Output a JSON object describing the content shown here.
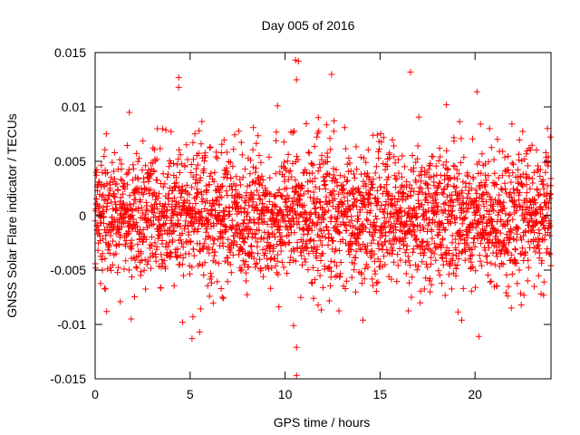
{
  "chart_data": {
    "type": "scatter",
    "title": "Day 005 of 2016",
    "xlabel": "GPS time / hours",
    "ylabel": "GNSS Solar Flare indicator / TECUs",
    "xlim": [
      0,
      24
    ],
    "ylim": [
      -0.015,
      0.015
    ],
    "x_ticks": [
      0,
      5,
      10,
      15,
      20
    ],
    "x_tick_labels": [
      "0",
      "5",
      "10",
      "15",
      "20"
    ],
    "y_ticks": [
      -0.015,
      -0.01,
      -0.005,
      0,
      0.005,
      0.01,
      0.015
    ],
    "y_tick_labels": [
      "-0.015",
      "-0.01",
      "-0.005",
      "0",
      "0.005",
      "0.01",
      "0.015"
    ],
    "marker": "+",
    "grid": false,
    "legend": "none",
    "colors": {
      "marker": "#ff0000",
      "frame": "#000000",
      "background": "#ffffff"
    },
    "series": [
      {
        "points_per_hour": 120,
        "envelope_std": 0.0031,
        "notable_points": [
          {
            "x": 1.8,
            "y": 0.0095
          },
          {
            "x": 4.4,
            "y": 0.0127
          },
          {
            "x": 4.4,
            "y": 0.0118
          },
          {
            "x": 4.6,
            "y": -0.0098
          },
          {
            "x": 5.1,
            "y": -0.0113
          },
          {
            "x": 5.15,
            "y": -0.0093
          },
          {
            "x": 5.5,
            "y": -0.0107
          },
          {
            "x": 9.6,
            "y": 0.0101
          },
          {
            "x": 10.55,
            "y": 0.0143
          },
          {
            "x": 10.7,
            "y": 0.0142
          },
          {
            "x": 10.6,
            "y": 0.0125
          },
          {
            "x": 10.45,
            "y": -0.0101
          },
          {
            "x": 10.6,
            "y": -0.0121
          },
          {
            "x": 10.6,
            "y": -0.0147
          },
          {
            "x": 12.45,
            "y": 0.013
          },
          {
            "x": 16.6,
            "y": 0.0132
          },
          {
            "x": 19.3,
            "y": -0.0096
          },
          {
            "x": 20.1,
            "y": 0.0114
          },
          {
            "x": 20.2,
            "y": -0.0111
          },
          {
            "x": 14.1,
            "y": -0.0096
          },
          {
            "x": 18.5,
            "y": 0.0102
          },
          {
            "x": 1.9,
            "y": -0.0095
          }
        ]
      }
    ]
  }
}
